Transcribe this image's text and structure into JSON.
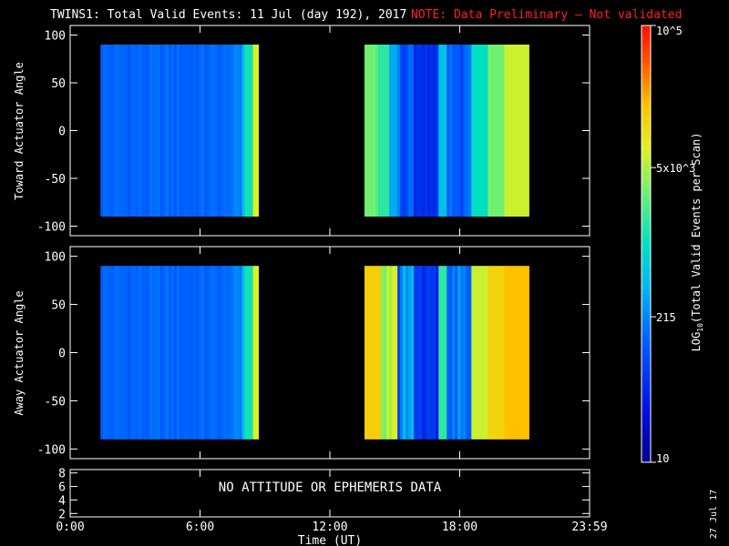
{
  "title": {
    "main": "TWINS1: Total Valid Events: 11 Jul (day 192), 2017",
    "note": "NOTE: Data Preliminary – Not validated",
    "note_color": "#ff2020"
  },
  "chart_data": [
    {
      "type": "heatmap",
      "panel": "toward",
      "ylabel": "Toward Actuator Angle",
      "ylim": [
        -110,
        110
      ],
      "yticks": [
        100,
        50,
        0,
        -50,
        -100
      ],
      "xlim": [
        0,
        24
      ],
      "x_tick_labels": [
        "0:00",
        "6:00",
        "12:00",
        "18:00",
        "23:59"
      ],
      "data_windows_hours": [
        [
          1.4,
          8.7
        ],
        [
          13.6,
          21.2
        ]
      ],
      "angle_range": [
        -90,
        90
      ],
      "typical_level_window1": "~150-250 events per scan",
      "typical_level_window2": "~200-4000 events per scan"
    },
    {
      "type": "heatmap",
      "panel": "away",
      "ylabel": "Away Actuator Angle",
      "ylim": [
        -110,
        110
      ],
      "yticks": [
        100,
        50,
        0,
        -50,
        -100
      ],
      "xlim": [
        0,
        24
      ],
      "x_tick_labels": [
        "0:00",
        "6:00",
        "12:00",
        "18:00",
        "23:59"
      ],
      "data_windows_hours": [
        [
          1.4,
          8.7
        ],
        [
          13.6,
          21.2
        ]
      ],
      "angle_range": [
        -90,
        90
      ]
    },
    {
      "type": "line",
      "panel": "attitude",
      "ylim": [
        1.5,
        8.5
      ],
      "yticks": [
        8,
        6,
        4,
        2
      ],
      "message": "NO ATTITUDE OR EPHEMERIS DATA",
      "xlabel": "Time (UT)",
      "x_tick_labels": [
        "0:00",
        "6:00",
        "12:00",
        "18:00",
        "23:59"
      ]
    }
  ],
  "colorbar": {
    "label": "LOG10(Total Valid Events per Scan)",
    "scale": "log",
    "range": [
      10,
      100000
    ],
    "tick_labels": [
      "10",
      "215",
      "5x10^3",
      "10^5"
    ],
    "tick_values": [
      10,
      215,
      5000,
      100000
    ]
  },
  "footer": {
    "date": "27 Jul 17"
  }
}
